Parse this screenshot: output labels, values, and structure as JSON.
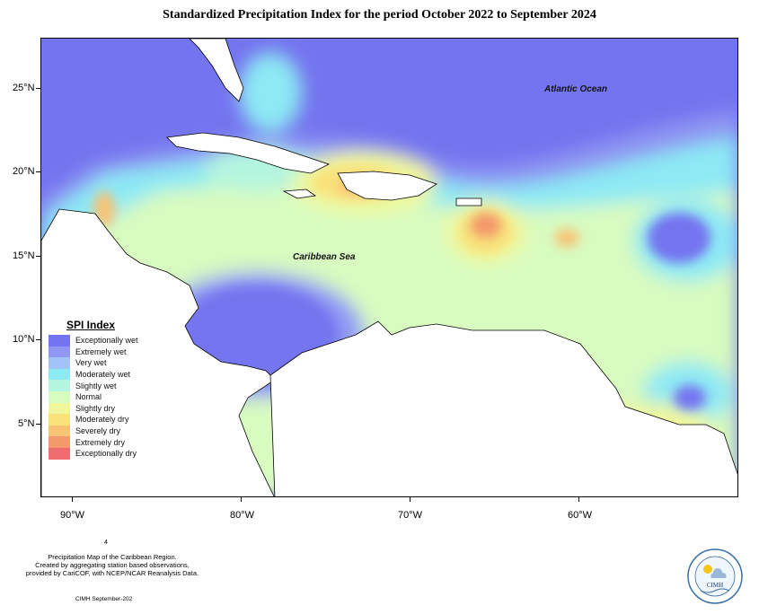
{
  "title": "Standardized Precipitation Index for the period October 2022 to September 2024",
  "map": {
    "y_ticks": [
      "25°N",
      "20°N",
      "15°N",
      "10°N",
      "5°N"
    ],
    "x_ticks": [
      "90°W",
      "80°W",
      "70°W",
      "60°W"
    ],
    "ocean_labels": {
      "atlantic": "Atlantic Ocean",
      "caribbean": "Caribbean Sea"
    }
  },
  "legend": {
    "title": "SPI Index",
    "items": [
      {
        "label": "Exceptionally wet",
        "color": "#7474ef"
      },
      {
        "label": "Extremely wet",
        "color": "#8f97f3"
      },
      {
        "label": "Very wet",
        "color": "#a2c3f6"
      },
      {
        "label": "Moderately wet",
        "color": "#8de9f4"
      },
      {
        "label": "Slightly wet",
        "color": "#b4f5e0"
      },
      {
        "label": "Normal",
        "color": "#d8fbc0"
      },
      {
        "label": "Slightly dry",
        "color": "#f0f79a"
      },
      {
        "label": "Moderately dry",
        "color": "#f9e27c"
      },
      {
        "label": "Severely dry",
        "color": "#f8c374"
      },
      {
        "label": "Extremely dry",
        "color": "#f39a6a"
      },
      {
        "label": "Exceptionally dry",
        "color": "#ee6e70"
      }
    ]
  },
  "footer": {
    "number": "4",
    "line1": "Precipitation Map of the Caribbean Region.",
    "line2": "Created by aggregating station based observations,",
    "line3": "provided by CariCOF, with NCEP/NCAR Reanalysis Data.",
    "credit": "CIMH September-202"
  },
  "logo": {
    "text": "CIMH"
  }
}
